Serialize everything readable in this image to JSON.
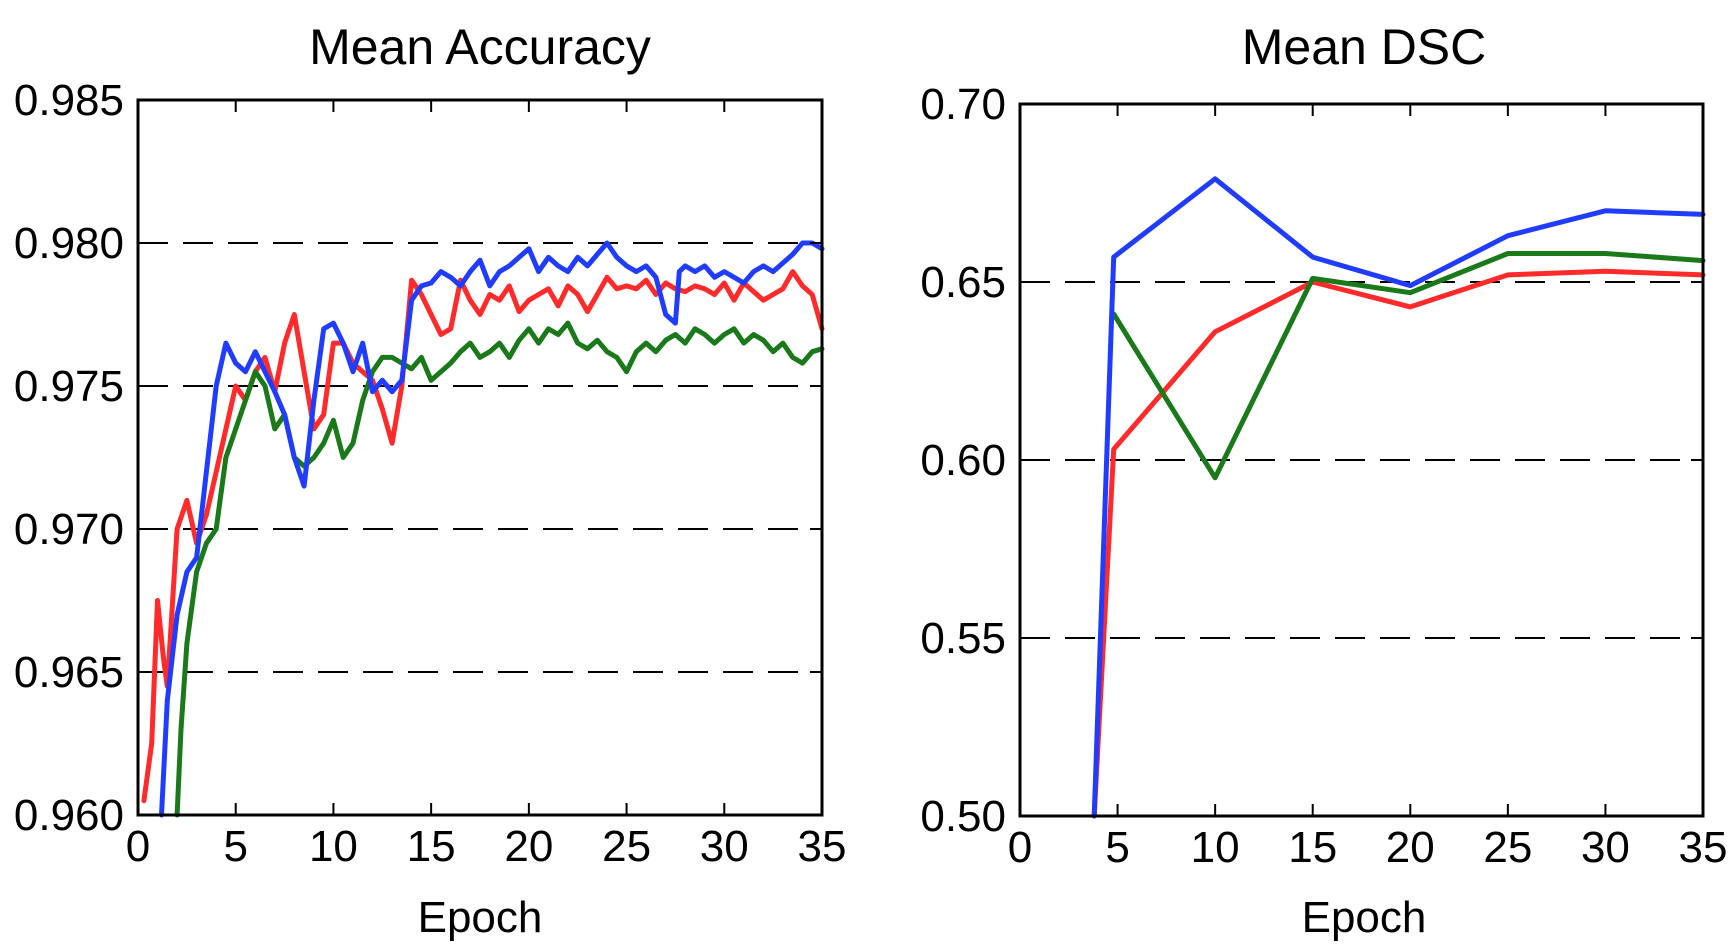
{
  "chart_data": [
    {
      "type": "line",
      "title": "Mean Accuracy",
      "xlabel": "Epoch",
      "ylabel": "",
      "xlim": [
        0,
        35
      ],
      "ylim": [
        0.96,
        0.985
      ],
      "xticks": [
        0,
        5,
        10,
        15,
        20,
        25,
        30,
        35
      ],
      "xtick_labels": [
        "0",
        "5",
        "10",
        "15",
        "20",
        "25",
        "30",
        "35"
      ],
      "yticks": [
        0.96,
        0.965,
        0.97,
        0.975,
        0.98,
        0.985
      ],
      "ytick_labels": [
        "0.960",
        "0.965",
        "0.970",
        "0.975",
        "0.980",
        "0.985"
      ],
      "grid": "horizontal dashed",
      "series": [
        {
          "color": "#ff2a2a",
          "x": [
            0.3,
            0.7,
            1.0,
            1.3,
            1.5,
            2.0,
            2.5,
            3.0,
            3.5,
            4.0,
            4.5,
            5.0,
            5.5,
            6.0,
            6.5,
            7.0,
            7.5,
            8.0,
            8.5,
            9.0,
            9.5,
            10.0,
            10.5,
            11.0,
            11.5,
            12.0,
            12.5,
            13.0,
            13.5,
            14.0,
            14.5,
            15.0,
            15.5,
            16.0,
            16.5,
            17.0,
            17.5,
            18.0,
            18.5,
            19.0,
            19.5,
            20.0,
            20.5,
            21.0,
            21.5,
            22.0,
            22.5,
            23.0,
            23.5,
            24.0,
            24.5,
            25.0,
            25.5,
            26.0,
            26.5,
            27.0,
            27.5,
            28.0,
            28.5,
            29.0,
            29.5,
            30.0,
            30.5,
            31.0,
            31.5,
            32.0,
            32.5,
            33.0,
            33.5,
            34.0,
            34.5,
            35.0
          ],
          "y": [
            0.9605,
            0.9625,
            0.9675,
            0.9655,
            0.9645,
            0.97,
            0.971,
            0.9695,
            0.9705,
            0.972,
            0.9735,
            0.975,
            0.9745,
            0.9755,
            0.976,
            0.9748,
            0.9765,
            0.9775,
            0.9755,
            0.9735,
            0.974,
            0.9765,
            0.9765,
            0.9758,
            0.9755,
            0.9752,
            0.9742,
            0.973,
            0.975,
            0.9787,
            0.9782,
            0.9775,
            0.9768,
            0.977,
            0.9787,
            0.978,
            0.9775,
            0.9782,
            0.978,
            0.9785,
            0.9776,
            0.978,
            0.9782,
            0.9784,
            0.9778,
            0.9785,
            0.9782,
            0.9776,
            0.9782,
            0.9788,
            0.9784,
            0.9785,
            0.9784,
            0.9787,
            0.9782,
            0.9786,
            0.9784,
            0.9783,
            0.9785,
            0.9784,
            0.9782,
            0.9786,
            0.978,
            0.9786,
            0.9783,
            0.978,
            0.9782,
            0.9784,
            0.979,
            0.9785,
            0.9782,
            0.977
          ]
        },
        {
          "color": "#1a7a1a",
          "x": [
            2.0,
            2.2,
            2.5,
            3.0,
            3.5,
            4.0,
            4.5,
            5.0,
            5.5,
            6.0,
            6.5,
            7.0,
            7.5,
            8.0,
            8.5,
            9.0,
            9.5,
            10.0,
            10.5,
            11.0,
            11.5,
            12.0,
            12.5,
            13.0,
            13.5,
            14.0,
            14.5,
            15.0,
            15.5,
            16.0,
            16.5,
            17.0,
            17.5,
            18.0,
            18.5,
            19.0,
            19.5,
            20.0,
            20.5,
            21.0,
            21.5,
            22.0,
            22.5,
            23.0,
            23.5,
            24.0,
            24.5,
            25.0,
            25.5,
            26.0,
            26.5,
            27.0,
            27.5,
            28.0,
            28.5,
            29.0,
            29.5,
            30.0,
            30.5,
            31.0,
            31.5,
            32.0,
            32.5,
            33.0,
            33.5,
            34.0,
            34.5,
            35.0
          ],
          "y": [
            0.96,
            0.963,
            0.966,
            0.9685,
            0.9695,
            0.97,
            0.9725,
            0.9735,
            0.9745,
            0.9755,
            0.975,
            0.9735,
            0.974,
            0.9725,
            0.9722,
            0.9725,
            0.973,
            0.9738,
            0.9725,
            0.973,
            0.9745,
            0.9755,
            0.976,
            0.976,
            0.9758,
            0.9756,
            0.976,
            0.9752,
            0.9755,
            0.9758,
            0.9762,
            0.9765,
            0.976,
            0.9762,
            0.9765,
            0.976,
            0.9766,
            0.977,
            0.9765,
            0.977,
            0.9768,
            0.9772,
            0.9765,
            0.9763,
            0.9766,
            0.9762,
            0.976,
            0.9755,
            0.9762,
            0.9765,
            0.9762,
            0.9766,
            0.9768,
            0.9765,
            0.977,
            0.9768,
            0.9765,
            0.9768,
            0.977,
            0.9765,
            0.9768,
            0.9766,
            0.9762,
            0.9765,
            0.976,
            0.9758,
            0.9762,
            0.9763
          ]
        },
        {
          "color": "#1f3cff",
          "x": [
            1.2,
            1.5,
            2.0,
            2.5,
            3.0,
            3.5,
            4.0,
            4.5,
            5.0,
            5.5,
            6.0,
            6.5,
            7.0,
            7.5,
            8.0,
            8.5,
            9.0,
            9.5,
            10.0,
            10.5,
            11.0,
            11.5,
            12.0,
            12.5,
            13.0,
            13.5,
            14.0,
            14.5,
            15.0,
            15.5,
            16.0,
            16.5,
            17.0,
            17.5,
            18.0,
            18.5,
            19.0,
            19.5,
            20.0,
            20.5,
            21.0,
            21.5,
            22.0,
            22.5,
            23.0,
            23.5,
            24.0,
            24.5,
            25.0,
            25.5,
            26.0,
            26.5,
            27.0,
            27.5,
            27.7,
            28.0,
            28.5,
            29.0,
            29.5,
            30.0,
            30.5,
            31.0,
            31.5,
            32.0,
            32.5,
            33.0,
            33.5,
            34.0,
            34.5,
            35.0
          ],
          "y": [
            0.96,
            0.964,
            0.967,
            0.9685,
            0.969,
            0.972,
            0.975,
            0.9765,
            0.9758,
            0.9755,
            0.9762,
            0.9755,
            0.9748,
            0.974,
            0.9725,
            0.9715,
            0.9745,
            0.977,
            0.9772,
            0.9765,
            0.9755,
            0.9765,
            0.9748,
            0.9752,
            0.9748,
            0.9752,
            0.978,
            0.9785,
            0.9786,
            0.979,
            0.9788,
            0.9785,
            0.979,
            0.9794,
            0.9785,
            0.979,
            0.9792,
            0.9795,
            0.9798,
            0.979,
            0.9795,
            0.9792,
            0.979,
            0.9795,
            0.9792,
            0.9796,
            0.98,
            0.9795,
            0.9792,
            0.979,
            0.9792,
            0.9788,
            0.9775,
            0.9772,
            0.979,
            0.9792,
            0.979,
            0.9792,
            0.9788,
            0.979,
            0.9788,
            0.9786,
            0.979,
            0.9792,
            0.979,
            0.9793,
            0.9796,
            0.98,
            0.98,
            0.9798
          ]
        }
      ]
    },
    {
      "type": "line",
      "title": "Mean DSC",
      "xlabel": "Epoch",
      "ylabel": "",
      "xlim": [
        0,
        35
      ],
      "ylim": [
        0.5,
        0.7
      ],
      "xticks": [
        0,
        5,
        10,
        15,
        20,
        25,
        30,
        35
      ],
      "xtick_labels": [
        "0",
        "5",
        "10",
        "15",
        "20",
        "25",
        "30",
        "35"
      ],
      "yticks": [
        0.5,
        0.55,
        0.6,
        0.65,
        0.7
      ],
      "ytick_labels": [
        "0.50",
        "0.55",
        "0.60",
        "0.65",
        "0.70"
      ],
      "grid": "horizontal dashed",
      "series": [
        {
          "color": "#ff2a2a",
          "x": [
            3.8,
            4.8,
            10,
            15,
            20,
            25,
            30,
            35
          ],
          "y": [
            0.5,
            0.603,
            0.636,
            0.65,
            0.643,
            0.652,
            0.653,
            0.652
          ]
        },
        {
          "color": "#1a7a1a",
          "x": [
            4.8,
            10,
            15,
            20,
            25,
            30,
            35
          ],
          "y": [
            0.641,
            0.595,
            0.651,
            0.647,
            0.658,
            0.658,
            0.656
          ]
        },
        {
          "color": "#1f3cff",
          "x": [
            3.8,
            4.8,
            10,
            15,
            20,
            25,
            30,
            35
          ],
          "y": [
            0.5,
            0.657,
            0.679,
            0.657,
            0.649,
            0.663,
            0.67,
            0.669
          ]
        }
      ]
    }
  ]
}
